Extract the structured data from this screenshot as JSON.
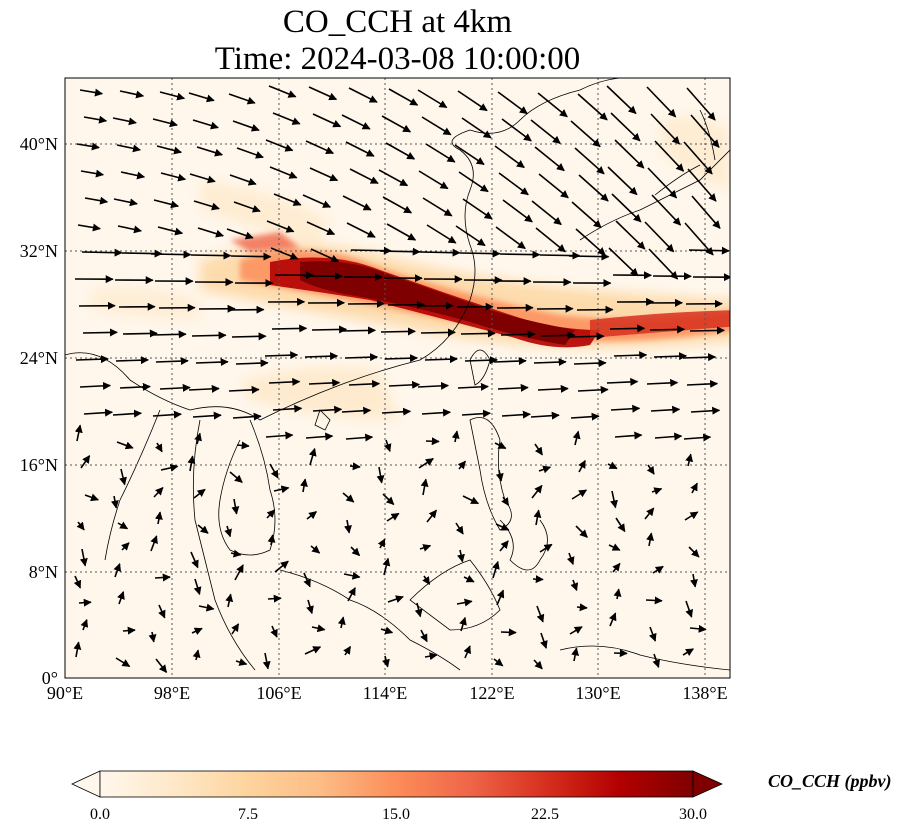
{
  "title_line1": "CO_CCH at 4km",
  "title_line2": "Time: 2024-03-08 10:00:00",
  "lat_ticks": [
    "40°N",
    "32°N",
    "24°N",
    "16°N",
    "8°N",
    "0°"
  ],
  "lon_ticks": [
    "90°E",
    "98°E",
    "106°E",
    "114°E",
    "122°E",
    "130°E",
    "138°E"
  ],
  "colorbar": {
    "label": "CO_CCH (ppbv)",
    "ticks": [
      "0.0",
      "7.5",
      "15.0",
      "22.5",
      "30.0"
    ],
    "range": [
      0,
      30
    ],
    "colormap": "OrRd",
    "extend": "both",
    "colors": [
      "#fff7ec",
      "#fee8c8",
      "#fdd49e",
      "#fdbb84",
      "#fc8d59",
      "#ef6548",
      "#d7301f",
      "#b30000",
      "#7f0000"
    ]
  },
  "map": {
    "extent_lon": [
      90,
      140
    ],
    "extent_lat": [
      0,
      45
    ],
    "gridlines": "dotted",
    "plume_color": "#7f0000",
    "vector_color": "#000000"
  }
}
